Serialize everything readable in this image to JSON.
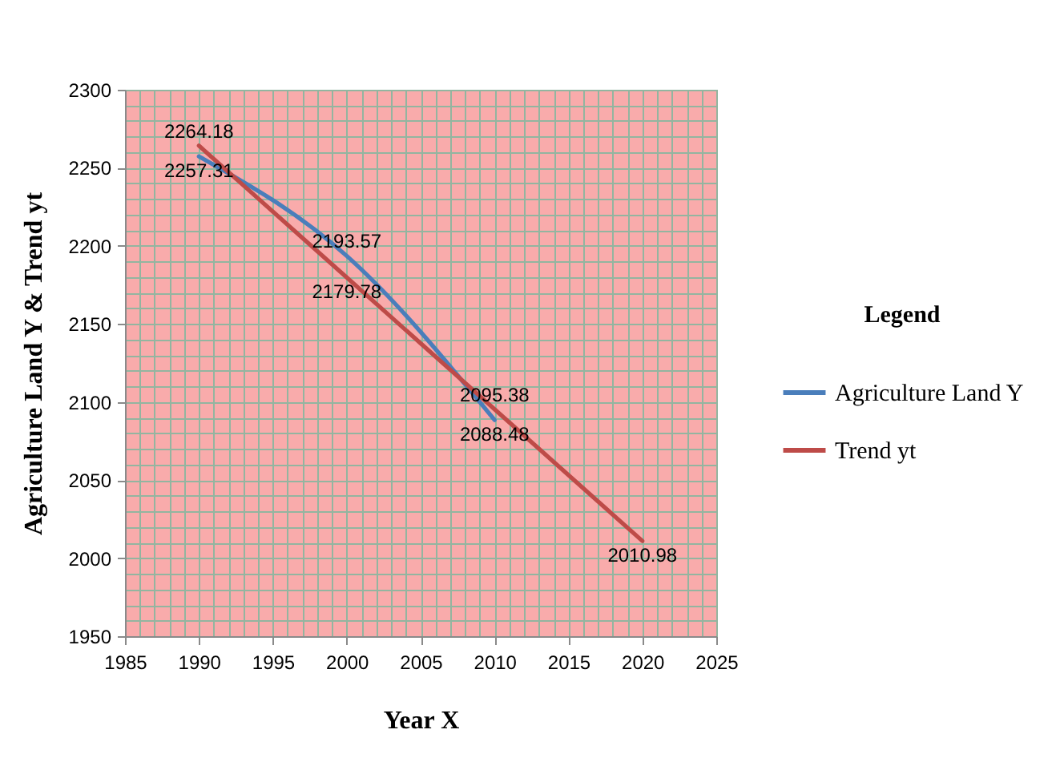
{
  "chart_data": {
    "type": "line",
    "xlabel": "Year X",
    "ylabel": "Agriculture Land Y & Trend yt",
    "legend_title": "Legend",
    "x": [
      1990,
      2000,
      2010
    ],
    "series": [
      {
        "name": "Agriculture Land Y",
        "color": "#4a7ebb",
        "values": [
          2257.31,
          2193.57,
          2088.48
        ]
      },
      {
        "name": "Trend yt",
        "color": "#be4b48",
        "x": [
          1990,
          2000,
          2010,
          2020
        ],
        "values": [
          2264.18,
          2179.78,
          2095.38,
          2010.98
        ]
      }
    ],
    "xlim": [
      1985,
      2025
    ],
    "xticks": [
      1985,
      1990,
      1995,
      2000,
      2005,
      2010,
      2015,
      2020,
      2025
    ],
    "ylim": [
      1950,
      2300
    ],
    "yticks": [
      1950,
      2000,
      2050,
      2100,
      2150,
      2200,
      2250,
      2300
    ],
    "grid": true,
    "legend": "right",
    "data_labels": true
  }
}
